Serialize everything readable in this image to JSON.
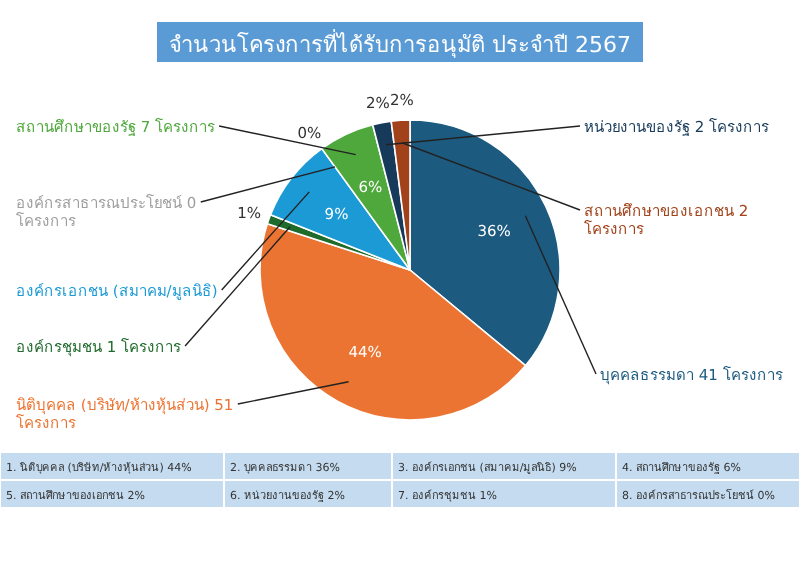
{
  "chart_data": {
    "type": "pie",
    "title": "จำนวนโครงการที่ได้รับการอนุมัติ ประจำปี 2567",
    "categories": [
      "บุคคลธรรมดา 41 โครงการ",
      "นิติบุคคล (บริษัท/ห้างหุ้นส่วน) 51 โครงการ",
      "องค์กรชุมชน 1 โครงการ",
      "องค์กรเอกชน (สมาคม/มูลนิธิ)",
      "องค์กรสาธารณประโยชน์ 0 โครงการ",
      "สถานศึกษาของรัฐ 7 โครงการ",
      "หน่วยงานของรัฐ 2 โครงการ",
      "สถานศึกษาของเอกชน 2 โครงการ"
    ],
    "values": [
      36,
      44,
      1,
      9,
      0,
      6,
      2,
      2
    ],
    "value_labels": [
      "36%",
      "44%",
      "1%",
      "9%",
      "0%",
      "6%",
      "2%",
      "2%"
    ],
    "colors": [
      "#1d5a80",
      "#ec7432",
      "#1f6b2c",
      "#1b9ad6",
      "#9e9e9e",
      "#4ea83c",
      "#173a5a",
      "#a2421a"
    ],
    "annotations": [
      "1. นิติบุคคล (บริษัท/ห้างหุ้นส่วน) 44%",
      "2. บุคคลธรรมดา 36%",
      "3. องค์กรเอกชน (สมาคม/มูลนิธิ) 9%",
      "4. สถานศึกษาของรัฐ 6%",
      "5. สถานศึกษาของเอกชน 2%",
      "6. หน่วยงานของรัฐ 2%",
      "7. องค์กรชุมชน 1%",
      "8. องค์กรสาธารณประโยชน์ 0%"
    ]
  }
}
